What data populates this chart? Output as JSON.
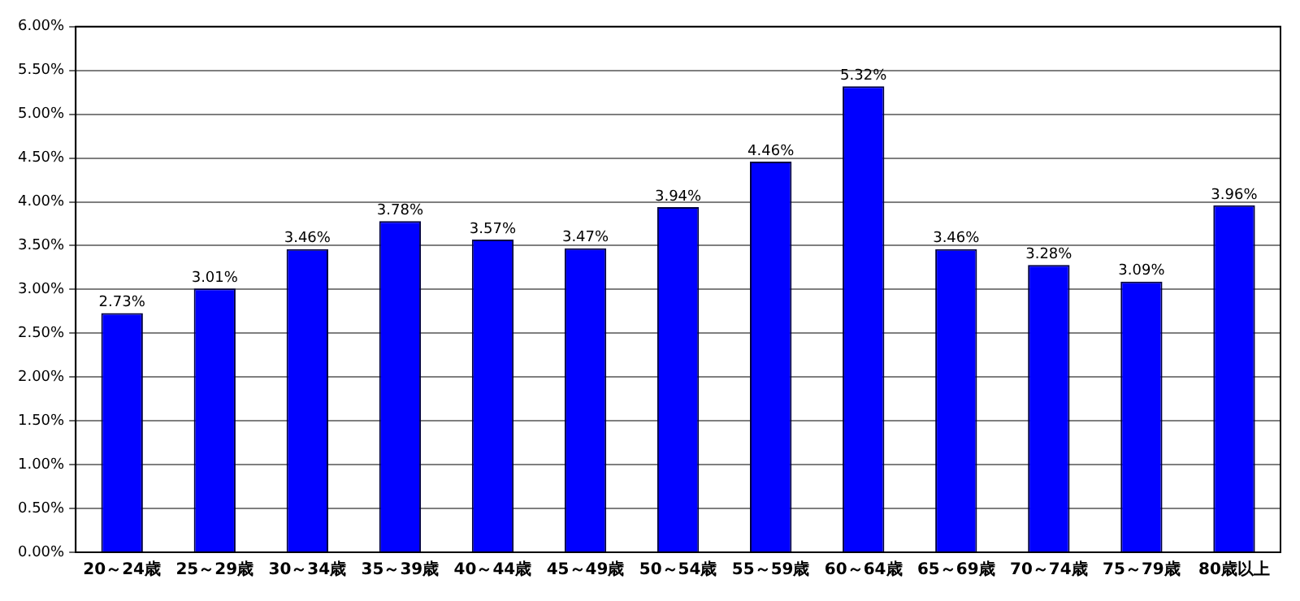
{
  "chart_data": {
    "type": "bar",
    "categories": [
      "20～24歳",
      "25～29歳",
      "30～34歳",
      "35～39歳",
      "40～44歳",
      "45～49歳",
      "50～54歳",
      "55～59歳",
      "60～64歳",
      "65～69歳",
      "70～74歳",
      "75～79歳",
      "80歳以上"
    ],
    "values": [
      2.73,
      3.01,
      3.46,
      3.78,
      3.57,
      3.47,
      3.94,
      4.46,
      5.32,
      3.46,
      3.28,
      3.09,
      3.96
    ],
    "value_labels": [
      "2.73%",
      "3.01%",
      "3.46%",
      "3.78%",
      "3.57%",
      "3.47%",
      "3.94%",
      "4.46%",
      "5.32%",
      "3.46%",
      "3.28%",
      "3.09%",
      "3.96%"
    ],
    "color": "#0000ff",
    "ylim": [
      0,
      6
    ],
    "yticks": [
      {
        "value": 0,
        "label": "0.00%"
      },
      {
        "value": 0.5,
        "label": "0.50%"
      },
      {
        "value": 1,
        "label": "1.00%"
      },
      {
        "value": 1.5,
        "label": "1.50%"
      },
      {
        "value": 2,
        "label": "2.00%"
      },
      {
        "value": 2.5,
        "label": "2.50%"
      },
      {
        "value": 3,
        "label": "3.00%"
      },
      {
        "value": 3.5,
        "label": "3.50%"
      },
      {
        "value": 4,
        "label": "4.00%"
      },
      {
        "value": 4.5,
        "label": "4.50%"
      },
      {
        "value": 5,
        "label": "5.00%"
      },
      {
        "value": 5.5,
        "label": "5.50%"
      },
      {
        "value": 6,
        "label": "6.00%"
      }
    ],
    "grid": "y",
    "legend": false
  }
}
